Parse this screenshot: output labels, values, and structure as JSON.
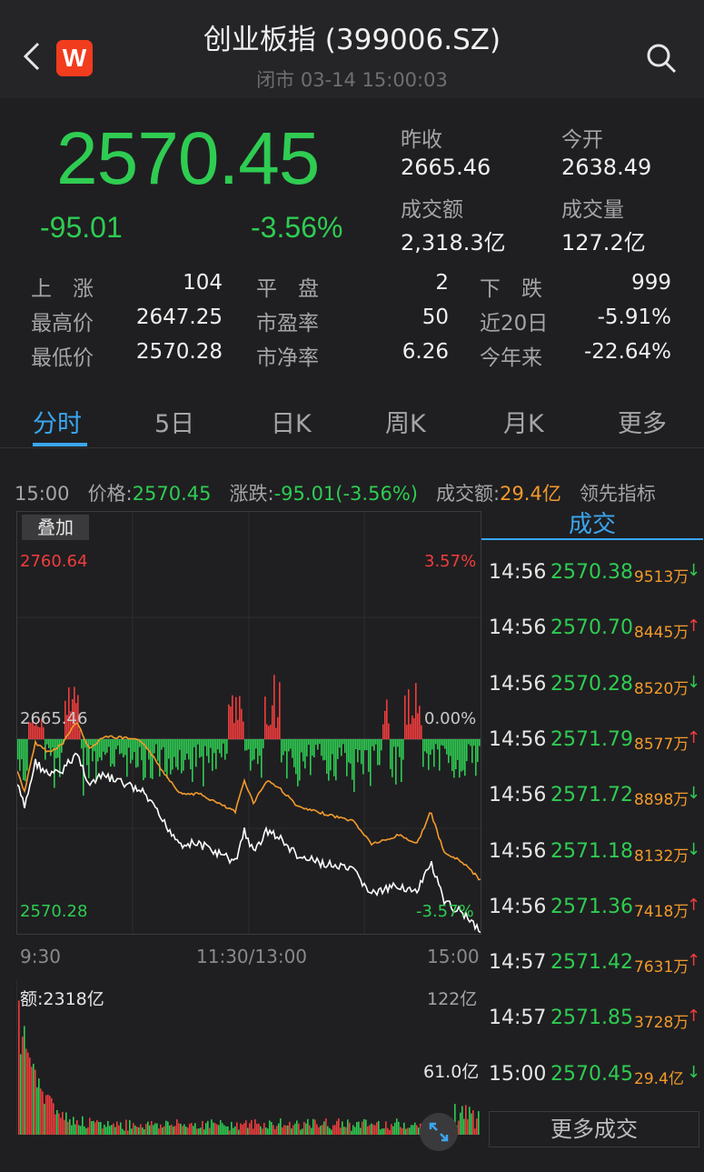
{
  "header": {
    "title": "创业板指 (399006.SZ)",
    "subtitle": "闭市 03-14 15:00:03",
    "logo_letter": "W"
  },
  "quote": {
    "price": "2570.45",
    "change": "-95.01",
    "change_pct": "-3.56%",
    "prev_close_label": "昨收",
    "prev_close": "2665.46",
    "open_label": "今开",
    "open": "2638.49",
    "turnover_label": "成交额",
    "turnover": "2,318.3亿",
    "volume_label": "成交量",
    "volume": "127.2亿"
  },
  "stats": [
    {
      "l1": "上　涨",
      "v1": "104",
      "l2": "平　盘",
      "v2": "2",
      "l3": "下　跌",
      "v3": "999"
    },
    {
      "l1": "最高价",
      "v1": "2647.25",
      "l2": "市盈率",
      "v2": "50",
      "l3": "近20日",
      "v3": "-5.91%"
    },
    {
      "l1": "最低价",
      "v1": "2570.28",
      "l2": "市净率",
      "v2": "6.26",
      "l3": "今年来",
      "v3": "-22.64%"
    }
  ],
  "tabs": [
    "分时",
    "5日",
    "日K",
    "周K",
    "月K",
    "更多"
  ],
  "infobar": {
    "time": "15:00",
    "price_label": "价格:",
    "price": "2570.45",
    "chg_label": "涨跌:",
    "chg": "-95.01(-3.56%)",
    "amt_label": "成交额:",
    "amt": "29.4亿",
    "lead": "领先指标"
  },
  "chart": {
    "overlay_label": "叠加",
    "high": "2760.64",
    "high_pct": "3.57%",
    "mid": "2665.46",
    "mid_pct": "0.00%",
    "low": "2570.28",
    "low_pct": "-3.57%",
    "t_start": "9:30",
    "t_mid": "11:30/13:00",
    "t_end": "15:00",
    "vol_label": "额:2318亿",
    "vol_max": "122亿",
    "vol_mid": "61.0亿"
  },
  "trades": {
    "header": "成交",
    "rows": [
      {
        "t": "14:56",
        "p": "2570.38",
        "v": "9513万",
        "d": "down"
      },
      {
        "t": "14:56",
        "p": "2570.70",
        "v": "8445万",
        "d": "up"
      },
      {
        "t": "14:56",
        "p": "2570.28",
        "v": "8520万",
        "d": "down"
      },
      {
        "t": "14:56",
        "p": "2571.79",
        "v": "8577万",
        "d": "up"
      },
      {
        "t": "14:56",
        "p": "2571.72",
        "v": "8898万",
        "d": "down"
      },
      {
        "t": "14:56",
        "p": "2571.18",
        "v": "8132万",
        "d": "down"
      },
      {
        "t": "14:56",
        "p": "2571.36",
        "v": "7418万",
        "d": "up"
      },
      {
        "t": "14:57",
        "p": "2571.42",
        "v": "7631万",
        "d": "up"
      },
      {
        "t": "14:57",
        "p": "2571.85",
        "v": "3728万",
        "d": "up"
      },
      {
        "t": "15:00",
        "p": "2570.45",
        "v": "29.4亿",
        "d": "down"
      }
    ],
    "more": "更多成交"
  },
  "colors": {
    "up": "#f23c3c",
    "down": "#2fcc52",
    "accent": "#3aa6f0",
    "avg": "#f39a2b"
  }
}
